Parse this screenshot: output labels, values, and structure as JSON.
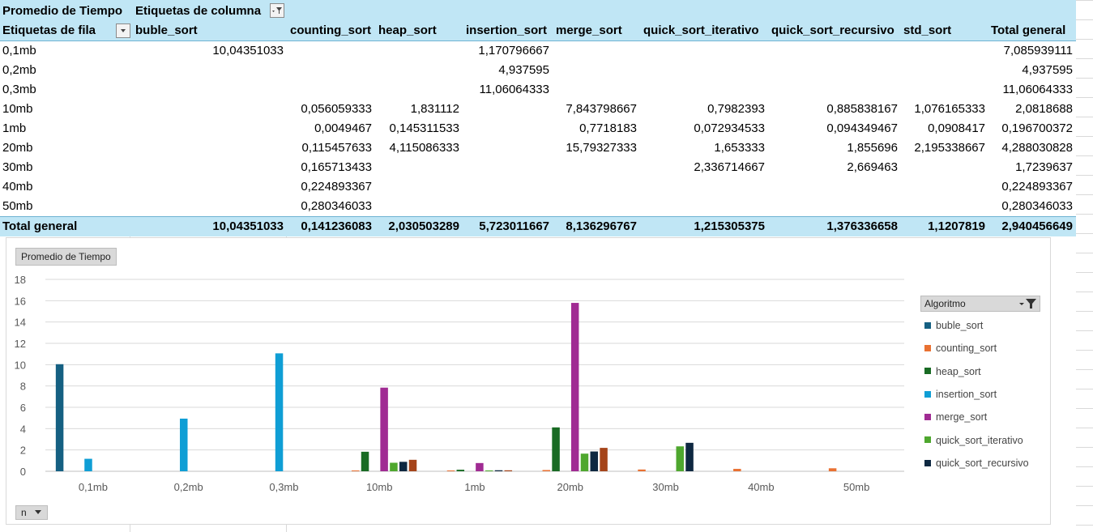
{
  "pivot": {
    "title": "Promedio de Tiempo",
    "column_labels_caption": "Etiquetas de columna",
    "row_labels_caption": "Etiquetas de fila",
    "columns": [
      "buble_sort",
      "counting_sort",
      "heap_sort",
      "insertion_sort",
      "merge_sort",
      "quick_sort_iterativo",
      "quick_sort_recursivo",
      "std_sort",
      "Total general"
    ],
    "rows": [
      {
        "label": "0,1mb",
        "cells": [
          "10,04351033",
          "",
          "",
          "1,170796667",
          "",
          "",
          "",
          "",
          "7,085939111"
        ]
      },
      {
        "label": "0,2mb",
        "cells": [
          "",
          "",
          "",
          "4,937595",
          "",
          "",
          "",
          "",
          "4,937595"
        ]
      },
      {
        "label": "0,3mb",
        "cells": [
          "",
          "",
          "",
          "11,06064333",
          "",
          "",
          "",
          "",
          "11,06064333"
        ]
      },
      {
        "label": "10mb",
        "cells": [
          "",
          "0,056059333",
          "1,831112",
          "",
          "7,843798667",
          "0,7982393",
          "0,885838167",
          "1,076165333",
          "2,0818688"
        ]
      },
      {
        "label": "1mb",
        "cells": [
          "",
          "0,0049467",
          "0,145311533",
          "",
          "0,7718183",
          "0,072934533",
          "0,094349467",
          "0,0908417",
          "0,196700372"
        ]
      },
      {
        "label": "20mb",
        "cells": [
          "",
          "0,115457633",
          "4,115086333",
          "",
          "15,79327333",
          "1,653333",
          "1,855696",
          "2,195338667",
          "4,288030828"
        ]
      },
      {
        "label": "30mb",
        "cells": [
          "",
          "0,165713433",
          "",
          "",
          "",
          "2,336714667",
          "2,669463",
          "",
          "1,7239637"
        ]
      },
      {
        "label": "40mb",
        "cells": [
          "",
          "0,224893367",
          "",
          "",
          "",
          "",
          "",
          "",
          "0,224893367"
        ]
      },
      {
        "label": "50mb",
        "cells": [
          "",
          "0,280346033",
          "",
          "",
          "",
          "",
          "",
          "",
          "0,280346033"
        ]
      }
    ],
    "total": {
      "label": "Total general",
      "cells": [
        "10,04351033",
        "0,141236083",
        "2,030503289",
        "5,723011667",
        "8,136296767",
        "1,215305375",
        "1,376336658",
        "1,1207819",
        "2,940456649"
      ]
    }
  },
  "chart_field_button": "Promedio de Tiempo",
  "axis_field_button": "n",
  "legend_title": "Algoritmo",
  "icons": {
    "filter": "filter-icon",
    "dropdown": "dropdown-arrow-icon"
  },
  "chart_data": {
    "type": "bar",
    "categories": [
      "0,1mb",
      "0,2mb",
      "0,3mb",
      "10mb",
      "1mb",
      "20mb",
      "30mb",
      "40mb",
      "50mb"
    ],
    "ylim": [
      0,
      18
    ],
    "yticks": [
      0,
      2,
      4,
      6,
      8,
      10,
      12,
      14,
      16,
      18
    ],
    "grid": true,
    "legend_position": "right",
    "series": [
      {
        "name": "buble_sort",
        "color": "#156082",
        "values": [
          10.04351033,
          null,
          null,
          null,
          null,
          null,
          null,
          null,
          null
        ]
      },
      {
        "name": "counting_sort",
        "color": "#e97132",
        "values": [
          null,
          null,
          null,
          0.056059333,
          0.0049467,
          0.115457633,
          0.165713433,
          0.224893367,
          0.280346033
        ]
      },
      {
        "name": "heap_sort",
        "color": "#196b24",
        "values": [
          null,
          null,
          null,
          1.831112,
          0.145311533,
          4.115086333,
          null,
          null,
          null
        ]
      },
      {
        "name": "insertion_sort",
        "color": "#0f9ed5",
        "values": [
          1.170796667,
          4.937595,
          11.06064333,
          null,
          null,
          null,
          null,
          null,
          null
        ]
      },
      {
        "name": "merge_sort",
        "color": "#a02b93",
        "values": [
          null,
          null,
          null,
          7.843798667,
          0.7718183,
          15.79327333,
          null,
          null,
          null
        ]
      },
      {
        "name": "quick_sort_iterativo",
        "color": "#4ea72e",
        "values": [
          null,
          null,
          null,
          0.7982393,
          0.072934533,
          1.653333,
          2.336714667,
          null,
          null
        ]
      },
      {
        "name": "quick_sort_recursivo",
        "color": "#0e2841",
        "values": [
          null,
          null,
          null,
          0.885838167,
          0.094349467,
          1.855696,
          2.669463,
          null,
          null
        ]
      },
      {
        "name": "std_sort",
        "color": "#a5441a",
        "values": [
          null,
          null,
          null,
          1.076165333,
          0.0908417,
          2.195338667,
          null,
          null,
          null
        ]
      }
    ]
  }
}
